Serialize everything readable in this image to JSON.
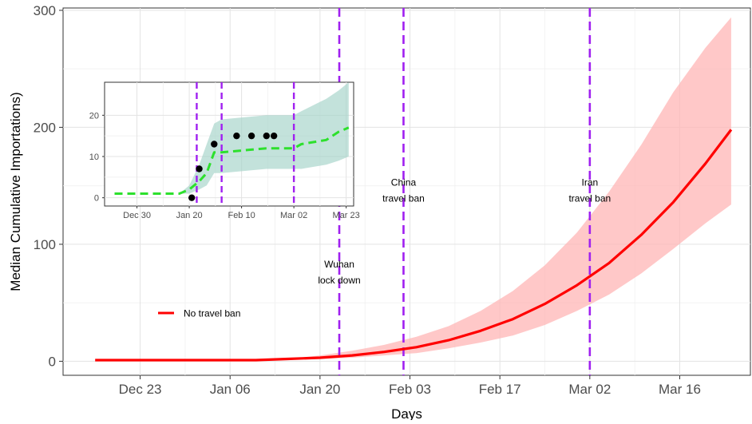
{
  "chart_data": [
    {
      "type": "line",
      "title": "",
      "xlabel": "Days",
      "ylabel": "Median Cumulative Importations)",
      "x_range": [
        "2019-12-11",
        "2020-03-27"
      ],
      "ylim": [
        -12,
        302
      ],
      "grid": true,
      "legend_placement": "bottom-left",
      "x_ticks": [
        {
          "date": "2019-12-23",
          "label": "Dec 23"
        },
        {
          "date": "2020-01-06",
          "label": "Jan 06"
        },
        {
          "date": "2020-01-20",
          "label": "Jan 20"
        },
        {
          "date": "2020-02-03",
          "label": "Feb 03"
        },
        {
          "date": "2020-02-17",
          "label": "Feb 17"
        },
        {
          "date": "2020-03-02",
          "label": "Mar 02"
        },
        {
          "date": "2020-03-16",
          "label": "Mar 16"
        }
      ],
      "y_ticks": [
        0,
        100,
        200,
        300
      ],
      "series": [
        {
          "name": "No travel ban",
          "color": "#ff0000",
          "band_color": "#ffb6b6",
          "points": [
            {
              "x": "2019-12-16",
              "y": 1,
              "lo": 1,
              "hi": 1
            },
            {
              "x": "2020-01-10",
              "y": 1,
              "lo": 1,
              "hi": 1
            },
            {
              "x": "2020-01-15",
              "y": 2,
              "lo": 2,
              "hi": 2
            },
            {
              "x": "2020-01-20",
              "y": 3,
              "lo": 2,
              "hi": 5
            },
            {
              "x": "2020-01-25",
              "y": 5,
              "lo": 3,
              "hi": 9
            },
            {
              "x": "2020-01-30",
              "y": 8,
              "lo": 5,
              "hi": 14
            },
            {
              "x": "2020-02-04",
              "y": 12,
              "lo": 7,
              "hi": 21
            },
            {
              "x": "2020-02-09",
              "y": 18,
              "lo": 11,
              "hi": 30
            },
            {
              "x": "2020-02-14",
              "y": 26,
              "lo": 16,
              "hi": 43
            },
            {
              "x": "2020-02-19",
              "y": 36,
              "lo": 22,
              "hi": 60
            },
            {
              "x": "2020-02-24",
              "y": 49,
              "lo": 31,
              "hi": 82
            },
            {
              "x": "2020-02-29",
              "y": 65,
              "lo": 43,
              "hi": 110
            },
            {
              "x": "2020-03-05",
              "y": 84,
              "lo": 57,
              "hi": 145
            },
            {
              "x": "2020-03-10",
              "y": 108,
              "lo": 75,
              "hi": 185
            },
            {
              "x": "2020-03-15",
              "y": 136,
              "lo": 96,
              "hi": 230
            },
            {
              "x": "2020-03-20",
              "y": 169,
              "lo": 118,
              "hi": 268
            },
            {
              "x": "2020-03-24",
              "y": 198,
              "lo": 134,
              "hi": 294
            }
          ]
        }
      ],
      "events": [
        {
          "date": "2020-01-23",
          "label_lines": [
            "Wuhan",
            "lock down"
          ],
          "label_y": 80,
          "color": "#a020f0"
        },
        {
          "date": "2020-02-02",
          "label_lines": [
            "China",
            "travel ban"
          ],
          "label_y": 150,
          "color": "#a020f0"
        },
        {
          "date": "2020-03-02",
          "label_lines": [
            "Iran",
            "travel ban"
          ],
          "label_y": 150,
          "color": "#a020f0"
        }
      ]
    },
    {
      "type": "line",
      "title": "",
      "xlabel": "",
      "ylabel": "",
      "x_range": [
        "2019-12-17",
        "2020-03-26"
      ],
      "ylim": [
        -2,
        28
      ],
      "grid": true,
      "x_ticks": [
        {
          "date": "2019-12-30",
          "label": "Dec 30"
        },
        {
          "date": "2020-01-20",
          "label": "Jan 20"
        },
        {
          "date": "2020-02-10",
          "label": "Feb 10"
        },
        {
          "date": "2020-03-02",
          "label": "Mar 02"
        },
        {
          "date": "2020-03-23",
          "label": "Mar 23"
        }
      ],
      "y_ticks": [
        0,
        10,
        20
      ],
      "series": [
        {
          "color": "#2de02d",
          "band_color": "#a3d3c8",
          "points": [
            {
              "x": "2019-12-21",
              "y": 1,
              "lo": 1,
              "hi": 1
            },
            {
              "x": "2020-01-16",
              "y": 1,
              "lo": 1,
              "hi": 1
            },
            {
              "x": "2020-01-20",
              "y": 2,
              "lo": 1,
              "hi": 3
            },
            {
              "x": "2020-01-24",
              "y": 4,
              "lo": 2,
              "hi": 8
            },
            {
              "x": "2020-01-27",
              "y": 6,
              "lo": 3,
              "hi": 13
            },
            {
              "x": "2020-01-30",
              "y": 11,
              "lo": 6,
              "hi": 18
            },
            {
              "x": "2020-02-02",
              "y": 11,
              "lo": 6,
              "hi": 19
            },
            {
              "x": "2020-02-20",
              "y": 12,
              "lo": 7,
              "hi": 20
            },
            {
              "x": "2020-03-02",
              "y": 12,
              "lo": 7,
              "hi": 20
            },
            {
              "x": "2020-03-05",
              "y": 13,
              "lo": 7,
              "hi": 21
            },
            {
              "x": "2020-03-15",
              "y": 14,
              "lo": 8,
              "hi": 24
            },
            {
              "x": "2020-03-20",
              "y": 16,
              "lo": 9,
              "hi": 26
            },
            {
              "x": "2020-03-24",
              "y": 17,
              "lo": 10,
              "hi": 28
            }
          ]
        }
      ],
      "observed": [
        {
          "x": "2020-01-21",
          "y": 0
        },
        {
          "x": "2020-01-24",
          "y": 7
        },
        {
          "x": "2020-01-30",
          "y": 13
        },
        {
          "x": "2020-02-08",
          "y": 15
        },
        {
          "x": "2020-02-14",
          "y": 15
        },
        {
          "x": "2020-02-20",
          "y": 15
        },
        {
          "x": "2020-02-23",
          "y": 15
        }
      ],
      "events": [
        {
          "date": "2020-01-23",
          "color": "#a020f0"
        },
        {
          "date": "2020-02-02",
          "color": "#a020f0"
        },
        {
          "date": "2020-03-02",
          "color": "#a020f0"
        }
      ]
    }
  ]
}
